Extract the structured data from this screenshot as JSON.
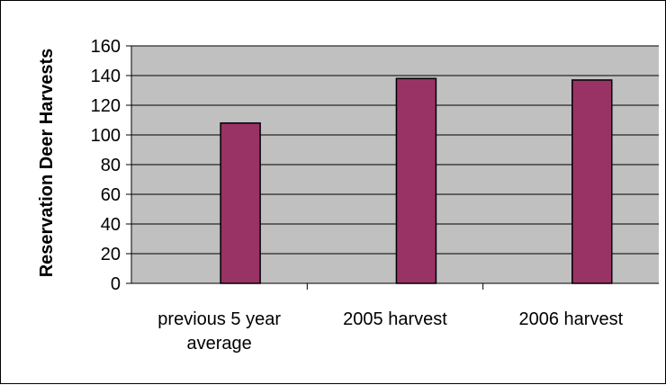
{
  "chart_data": {
    "type": "bar",
    "categories": [
      [
        "previous 5 year",
        "average"
      ],
      [
        "2005 harvest"
      ],
      [
        "2006 harvest"
      ]
    ],
    "values": [
      108,
      138,
      137
    ],
    "ylabel": "Reservation Deer Harvests",
    "ylim": [
      0,
      160
    ],
    "yticks": [
      0,
      20,
      40,
      60,
      80,
      100,
      120,
      140,
      160
    ],
    "grid": true,
    "legend": "none",
    "colors": {
      "plot_background": "#c0c0c0",
      "bar_fill": "#993366",
      "bar_stroke": "#000000",
      "gridline": "#000000"
    }
  }
}
